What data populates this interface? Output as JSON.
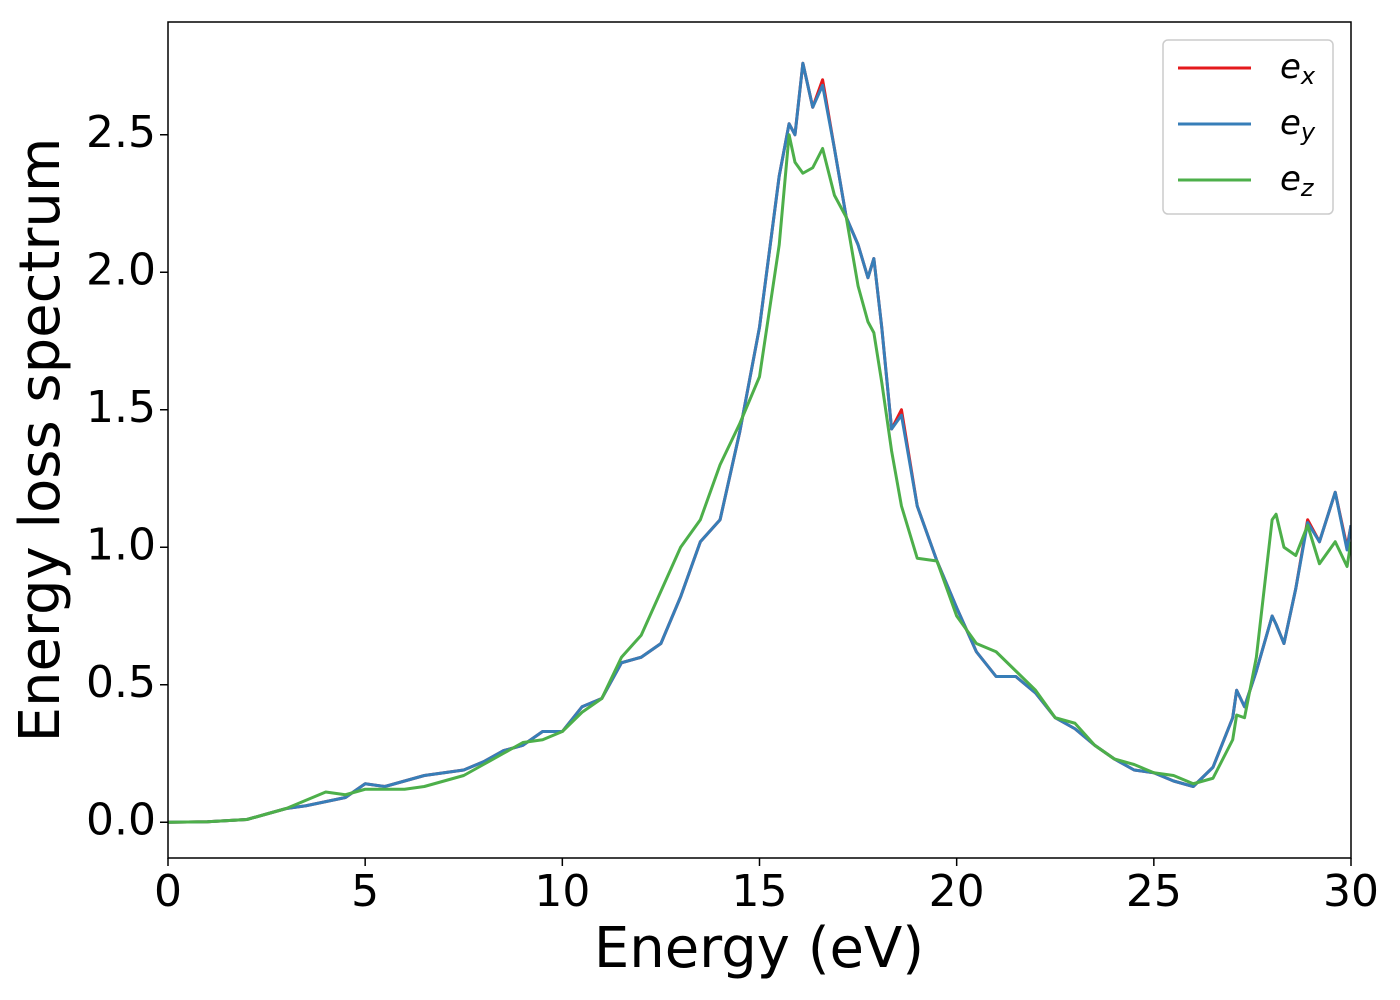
{
  "chart_data": {
    "type": "line",
    "xlabel": "Energy (eV)",
    "ylabel": "Energy loss spectrum",
    "x": [
      0,
      1,
      2,
      2.5,
      3,
      3.5,
      4,
      4.5,
      5,
      5.5,
      6,
      6.5,
      7,
      7.5,
      8,
      8.5,
      9,
      9.5,
      10,
      10.5,
      11,
      11.5,
      12,
      12.5,
      13,
      13.5,
      14,
      14.5,
      15,
      15.5,
      15.75,
      15.9,
      16.1,
      16.35,
      16.6,
      16.9,
      17.2,
      17.5,
      17.75,
      17.9,
      18.1,
      18.35,
      18.6,
      19,
      19.5,
      20,
      20.5,
      21,
      21.5,
      22,
      22.5,
      23,
      23.5,
      24,
      24.5,
      25,
      25.5,
      26,
      26.5,
      27,
      27.1,
      27.3,
      27.6,
      28,
      28.1,
      28.3,
      28.6,
      28.9,
      29.2,
      29.6,
      29.9,
      30
    ],
    "series": [
      {
        "name": "ex",
        "color": "#e41a1c",
        "values": [
          0,
          0.002,
          0.01,
          0.03,
          0.05,
          0.06,
          0.075,
          0.09,
          0.14,
          0.13,
          0.15,
          0.17,
          0.18,
          0.19,
          0.22,
          0.26,
          0.28,
          0.33,
          0.33,
          0.42,
          0.45,
          0.58,
          0.6,
          0.65,
          0.82,
          1.02,
          1.1,
          1.42,
          1.8,
          2.35,
          2.54,
          2.5,
          2.76,
          2.6,
          2.7,
          2.45,
          2.2,
          2.1,
          1.98,
          2.05,
          1.8,
          1.43,
          1.5,
          1.15,
          0.95,
          0.78,
          0.62,
          0.53,
          0.53,
          0.47,
          0.38,
          0.34,
          0.28,
          0.23,
          0.19,
          0.18,
          0.15,
          0.13,
          0.2,
          0.38,
          0.48,
          0.42,
          0.55,
          0.75,
          0.72,
          0.65,
          0.85,
          1.1,
          1.02,
          1.2,
          1.0,
          1.08
        ]
      },
      {
        "name": "ey",
        "color": "#377eb8",
        "values": [
          0,
          0.002,
          0.01,
          0.03,
          0.05,
          0.06,
          0.075,
          0.09,
          0.14,
          0.13,
          0.15,
          0.17,
          0.18,
          0.19,
          0.22,
          0.26,
          0.28,
          0.33,
          0.33,
          0.42,
          0.45,
          0.58,
          0.6,
          0.65,
          0.82,
          1.02,
          1.1,
          1.42,
          1.8,
          2.35,
          2.54,
          2.5,
          2.76,
          2.6,
          2.68,
          2.45,
          2.2,
          2.1,
          1.98,
          2.05,
          1.8,
          1.43,
          1.48,
          1.15,
          0.95,
          0.78,
          0.62,
          0.53,
          0.53,
          0.47,
          0.38,
          0.34,
          0.28,
          0.23,
          0.19,
          0.18,
          0.15,
          0.13,
          0.2,
          0.38,
          0.48,
          0.42,
          0.55,
          0.75,
          0.72,
          0.65,
          0.85,
          1.09,
          1.02,
          1.2,
          0.99,
          1.08
        ]
      },
      {
        "name": "ez",
        "color": "#4daf4a",
        "values": [
          0,
          0.002,
          0.01,
          0.03,
          0.05,
          0.08,
          0.11,
          0.1,
          0.12,
          0.12,
          0.12,
          0.13,
          0.15,
          0.17,
          0.21,
          0.25,
          0.29,
          0.3,
          0.33,
          0.4,
          0.45,
          0.6,
          0.68,
          0.84,
          1.0,
          1.1,
          1.3,
          1.45,
          1.62,
          2.1,
          2.5,
          2.4,
          2.36,
          2.38,
          2.45,
          2.28,
          2.2,
          1.95,
          1.82,
          1.78,
          1.6,
          1.35,
          1.15,
          0.96,
          0.95,
          0.75,
          0.65,
          0.62,
          0.55,
          0.48,
          0.38,
          0.36,
          0.28,
          0.23,
          0.21,
          0.18,
          0.17,
          0.14,
          0.16,
          0.3,
          0.39,
          0.38,
          0.6,
          1.1,
          1.12,
          1.0,
          0.97,
          1.08,
          0.94,
          1.02,
          0.93,
          1.02
        ]
      }
    ],
    "xlim": [
      0,
      30
    ],
    "xticks": [
      0,
      5,
      10,
      15,
      20,
      25,
      30
    ],
    "ylim": [
      -0.13,
      2.91
    ],
    "yticks": [
      {
        "value": 0,
        "label": "0.0"
      },
      0.5,
      {
        "value": 1,
        "label": "1.0"
      },
      1.5,
      {
        "value": 2,
        "label": "2.0"
      },
      2.5
    ],
    "grid": false,
    "legend": "upper right"
  }
}
